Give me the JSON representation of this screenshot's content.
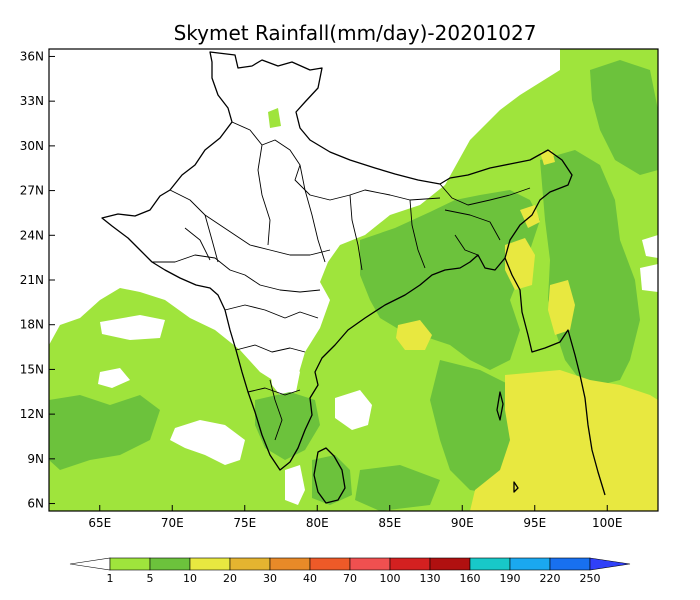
{
  "title": "Skymet Rainfall(mm/day)-20201027",
  "map": {
    "lon_range": [
      61.5,
      103.5
    ],
    "lat_range": [
      5.5,
      36.5
    ],
    "lon_ticks": [
      "65E",
      "70E",
      "75E",
      "80E",
      "85E",
      "90E",
      "95E",
      "100E"
    ],
    "lat_ticks": [
      "36N",
      "33N",
      "30N",
      "27N",
      "24N",
      "21N",
      "18N",
      "15N",
      "12N",
      "9N",
      "6N"
    ],
    "colors": {
      "no_rain": "#ffffff",
      "light_green": "#9fe43c",
      "mid_green": "#6cc23c",
      "yellow": "#e8e840"
    }
  },
  "colorbar": {
    "labels": [
      "1",
      "5",
      "10",
      "20",
      "30",
      "40",
      "70",
      "100",
      "130",
      "160",
      "190",
      "220",
      "250"
    ],
    "colors": [
      "#ffffff",
      "#9fe43c",
      "#6cc23c",
      "#e8e840",
      "#e4b430",
      "#e88a28",
      "#ee5a28",
      "#f05050",
      "#d42020",
      "#b01010",
      "#18c8c8",
      "#1aa8f0",
      "#1870f0",
      "#3040f8"
    ]
  }
}
